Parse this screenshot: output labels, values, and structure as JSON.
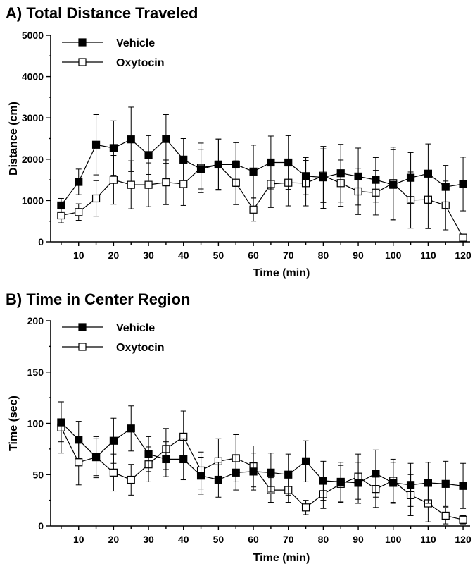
{
  "chart_data": [
    {
      "type": "line",
      "title": "A)  Total Distance Traveled",
      "xlabel": "Time (min)",
      "ylabel": "Distance (cm)",
      "xlim": [
        2,
        122
      ],
      "ylim": [
        0,
        5000
      ],
      "xticks": [
        10,
        20,
        30,
        40,
        50,
        60,
        70,
        80,
        90,
        100,
        110,
        120
      ],
      "yticks": [
        0,
        1000,
        2000,
        3000,
        4000,
        5000
      ],
      "legend_position": "top-left",
      "grid": false,
      "x": [
        5,
        10,
        15,
        20,
        25,
        30,
        35,
        40,
        45,
        50,
        55,
        60,
        65,
        70,
        75,
        80,
        85,
        90,
        95,
        100,
        105,
        110,
        115,
        120
      ],
      "series": [
        {
          "name": "Vehicle",
          "marker": "filled-square",
          "color": "#000000",
          "values": [
            880,
            1450,
            2350,
            2270,
            2480,
            2100,
            2490,
            1990,
            1760,
            1870,
            1870,
            1700,
            1920,
            1920,
            1590,
            1560,
            1660,
            1580,
            1500,
            1380,
            1550,
            1650,
            1330,
            1400
          ],
          "errors": [
            170,
            310,
            730,
            660,
            780,
            470,
            590,
            510,
            480,
            600,
            530,
            640,
            640,
            650,
            450,
            750,
            700,
            690,
            540,
            850,
            610,
            720,
            520,
            650
          ]
        },
        {
          "name": "Oxytocin",
          "marker": "open-square",
          "color": "#000000",
          "values": [
            640,
            720,
            1050,
            1500,
            1380,
            1380,
            1440,
            1400,
            1790,
            1870,
            1430,
            780,
            1400,
            1430,
            1420,
            1600,
            1420,
            1220,
            1190,
            1420,
            1010,
            1020,
            880,
            100
          ],
          "errors": [
            180,
            200,
            430,
            590,
            580,
            530,
            540,
            520,
            600,
            620,
            530,
            280,
            570,
            560,
            550,
            650,
            560,
            560,
            540,
            870,
            680,
            700,
            590,
            40
          ]
        }
      ]
    },
    {
      "type": "line",
      "title": "B)  Time in Center Region",
      "xlabel": "Time (min)",
      "ylabel": "Time (sec)",
      "xlim": [
        2,
        122
      ],
      "ylim": [
        0,
        200
      ],
      "xticks": [
        10,
        20,
        30,
        40,
        50,
        60,
        70,
        80,
        90,
        100,
        110,
        120
      ],
      "yticks": [
        0,
        50,
        100,
        150,
        200
      ],
      "legend_position": "top-left",
      "grid": false,
      "x": [
        5,
        10,
        15,
        20,
        25,
        30,
        35,
        40,
        45,
        50,
        55,
        60,
        65,
        70,
        75,
        80,
        85,
        90,
        95,
        100,
        105,
        110,
        115,
        120
      ],
      "series": [
        {
          "name": "Vehicle",
          "marker": "filled-square",
          "color": "#000000",
          "values": [
            101,
            84,
            67,
            83,
            95,
            70,
            65,
            65,
            49,
            45,
            52,
            53,
            52,
            50,
            63,
            44,
            43,
            42,
            51,
            42,
            40,
            42,
            41,
            39
          ],
          "errors": [
            19,
            18,
            20,
            22,
            22,
            17,
            17,
            20,
            18,
            17,
            17,
            18,
            19,
            20,
            20,
            19,
            19,
            20,
            23,
            20,
            21,
            20,
            22,
            22
          ]
        },
        {
          "name": "Oxytocin",
          "marker": "open-square",
          "color": "#000000",
          "values": [
            96,
            62,
            67,
            52,
            45,
            60,
            75,
            87,
            54,
            63,
            66,
            58,
            35,
            35,
            18,
            31,
            41,
            48,
            36,
            44,
            30,
            22,
            10,
            6
          ],
          "errors": [
            25,
            22,
            18,
            18,
            15,
            17,
            20,
            25,
            18,
            22,
            23,
            20,
            12,
            12,
            7,
            14,
            18,
            22,
            18,
            21,
            20,
            18,
            8,
            4
          ]
        }
      ]
    }
  ]
}
